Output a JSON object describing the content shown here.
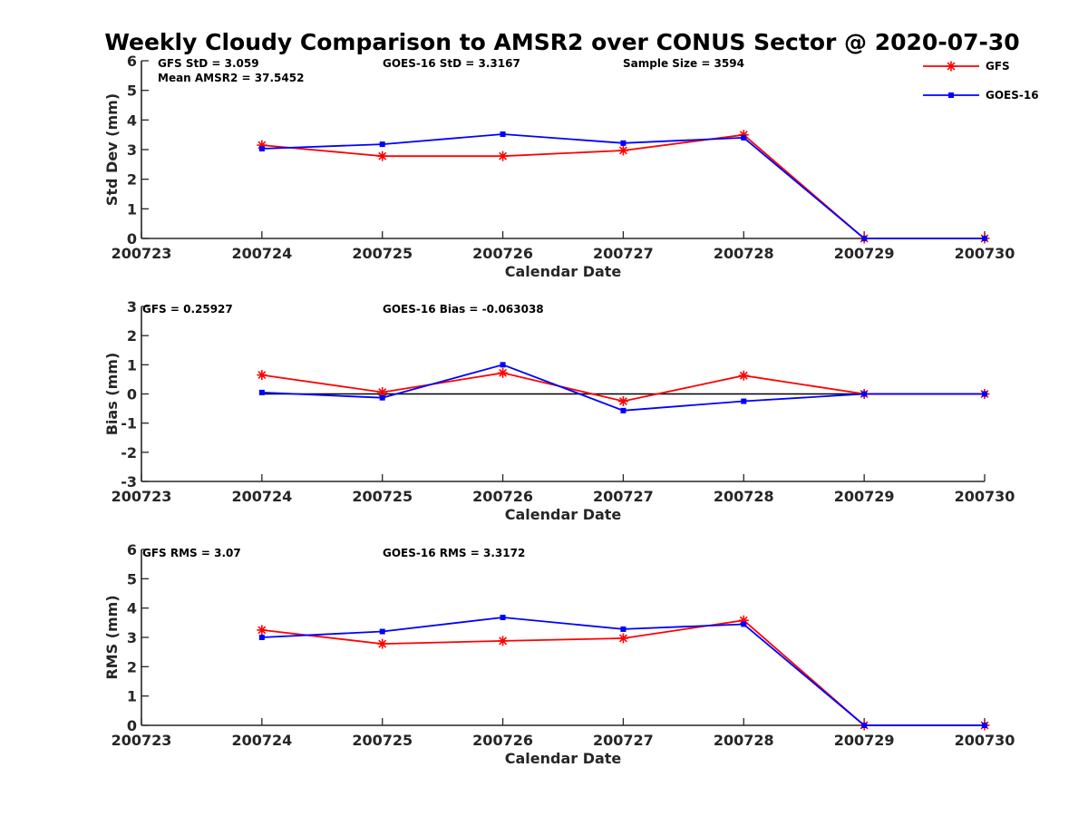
{
  "title": "Weekly Cloudy Comparison to AMSR2 over CONUS Sector @ 2020-07-30",
  "colors": {
    "GFS": "#ff0000",
    "GOES-16": "#0000ff",
    "axis": "#262626",
    "zero_line": "#000000"
  },
  "legend": [
    {
      "name": "GFS",
      "marker": "asterisk"
    },
    {
      "name": "GOES-16",
      "marker": "square"
    }
  ],
  "legend_location": "top-right",
  "chart_data": [
    {
      "type": "line",
      "xlabel": "Calendar Date",
      "ylabel": "Std Dev (mm)",
      "ylim": [
        0,
        6
      ],
      "yticks": [
        "0",
        "1",
        "2",
        "3",
        "4",
        "5",
        "6"
      ],
      "xticks": [
        "200723",
        "200724",
        "200725",
        "200726",
        "200727",
        "200728",
        "200729",
        "200730"
      ],
      "x": [
        "200724",
        "200725",
        "200726",
        "200727",
        "200728",
        "200729",
        "200730"
      ],
      "series": [
        {
          "name": "GFS",
          "values": [
            3.15,
            2.78,
            2.78,
            2.97,
            3.5,
            0,
            0
          ]
        },
        {
          "name": "GOES-16",
          "values": [
            3.03,
            3.18,
            3.52,
            3.22,
            3.4,
            0,
            0
          ]
        }
      ],
      "annotations": [
        "GFS StD = 3.059",
        "Mean AMSR2 = 37.5452",
        "GOES-16 StD = 3.3167",
        "Sample Size = 3594"
      ]
    },
    {
      "type": "line",
      "xlabel": "Calendar Date",
      "ylabel": "Bias (mm)",
      "ylim": [
        -3,
        3
      ],
      "yticks": [
        "-3",
        "-2",
        "-1",
        "0",
        "1",
        "2",
        "3"
      ],
      "xticks": [
        "200723",
        "200724",
        "200725",
        "200726",
        "200727",
        "200728",
        "200729",
        "200730"
      ],
      "x": [
        "200724",
        "200725",
        "200726",
        "200727",
        "200728",
        "200729",
        "200730"
      ],
      "zero_line": true,
      "series": [
        {
          "name": "GFS",
          "values": [
            0.65,
            0.06,
            0.72,
            -0.25,
            0.63,
            0,
            0
          ]
        },
        {
          "name": "GOES-16",
          "values": [
            0.05,
            -0.13,
            1.0,
            -0.57,
            -0.25,
            0,
            0
          ]
        }
      ],
      "annotations": [
        "GFS = 0.25927",
        "GOES-16 Bias  = -0.063038"
      ]
    },
    {
      "type": "line",
      "xlabel": "Calendar Date",
      "ylabel": "RMS (mm)",
      "ylim": [
        0,
        6
      ],
      "yticks": [
        "0",
        "1",
        "2",
        "3",
        "4",
        "5",
        "6"
      ],
      "xticks": [
        "200723",
        "200724",
        "200725",
        "200726",
        "200727",
        "200728",
        "200729",
        "200730"
      ],
      "x": [
        "200724",
        "200725",
        "200726",
        "200727",
        "200728",
        "200729",
        "200730"
      ],
      "series": [
        {
          "name": "GFS",
          "values": [
            3.25,
            2.78,
            2.88,
            2.97,
            3.58,
            0,
            0
          ]
        },
        {
          "name": "GOES-16",
          "values": [
            3.0,
            3.2,
            3.68,
            3.28,
            3.45,
            0,
            0
          ]
        }
      ],
      "annotations": [
        "GFS RMS = 3.07",
        "GOES-16 RMS = 3.3172"
      ]
    }
  ]
}
